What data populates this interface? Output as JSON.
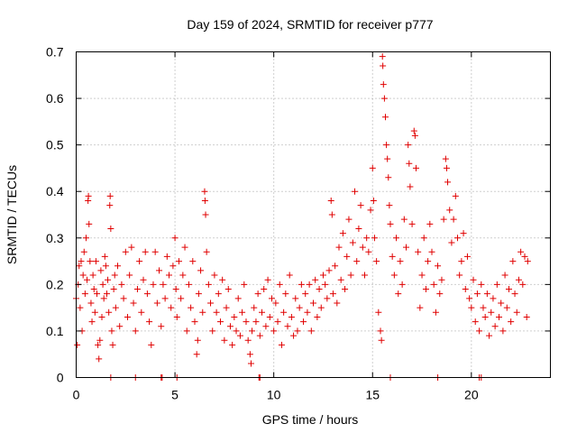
{
  "chart_data": {
    "type": "scatter",
    "title": "Day 159 of 2024, SRMTID for receiver p777",
    "xlabel": "GPS time / hours",
    "ylabel": "SRMTID / TECUs",
    "xlim": [
      0,
      24
    ],
    "ylim": [
      0,
      0.7
    ],
    "x_ticks": [
      0,
      5,
      10,
      15,
      20
    ],
    "x_tick_labels": [
      "0",
      "5",
      "10",
      "15",
      "20"
    ],
    "y_ticks": [
      0,
      0.1,
      0.2,
      0.3,
      0.4,
      0.5,
      0.6,
      0.7
    ],
    "y_tick_labels": [
      "0",
      "0.1",
      "0.2",
      "0.3",
      "0.4",
      "0.5",
      "0.6",
      "0.7"
    ],
    "grid": true,
    "marker": "+",
    "series_color": "#e00000",
    "series": [
      {
        "name": "SRMTID",
        "points": [
          [
            0.0,
            0.17
          ],
          [
            0.05,
            0.07
          ],
          [
            0.1,
            0.2
          ],
          [
            0.15,
            0.24
          ],
          [
            0.2,
            0.15
          ],
          [
            0.25,
            0.25
          ],
          [
            0.3,
            0.1
          ],
          [
            0.35,
            0.22
          ],
          [
            0.4,
            0.27
          ],
          [
            0.45,
            0.18
          ],
          [
            0.5,
            0.3
          ],
          [
            0.55,
            0.21
          ],
          [
            0.6,
            0.38
          ],
          [
            0.62,
            0.39
          ],
          [
            0.65,
            0.33
          ],
          [
            0.7,
            0.25
          ],
          [
            0.75,
            0.16
          ],
          [
            0.8,
            0.12
          ],
          [
            0.85,
            0.22
          ],
          [
            0.9,
            0.19
          ],
          [
            0.95,
            0.14
          ],
          [
            1.0,
            0.25
          ],
          [
            1.05,
            0.18
          ],
          [
            1.1,
            0.07
          ],
          [
            1.15,
            0.04
          ],
          [
            1.2,
            0.08
          ],
          [
            1.25,
            0.23
          ],
          [
            1.3,
            0.13
          ],
          [
            1.35,
            0.2
          ],
          [
            1.4,
            0.17
          ],
          [
            1.45,
            0.26
          ],
          [
            1.5,
            0.24
          ],
          [
            1.55,
            0.18
          ],
          [
            1.6,
            0.21
          ],
          [
            1.65,
            0.14
          ],
          [
            1.7,
            0.37
          ],
          [
            1.72,
            0.39
          ],
          [
            1.75,
            0.32
          ],
          [
            1.8,
            0.1
          ],
          [
            1.85,
            0.07
          ],
          [
            1.9,
            0.19
          ],
          [
            1.95,
            0.22
          ],
          [
            2.0,
            0.15
          ],
          [
            2.1,
            0.24
          ],
          [
            2.2,
            0.11
          ],
          [
            2.3,
            0.2
          ],
          [
            2.4,
            0.17
          ],
          [
            2.5,
            0.27
          ],
          [
            2.6,
            0.13
          ],
          [
            2.7,
            0.22
          ],
          [
            2.8,
            0.28
          ],
          [
            2.9,
            0.16
          ],
          [
            3.0,
            0.1
          ],
          [
            3.1,
            0.19
          ],
          [
            3.2,
            0.25
          ],
          [
            3.3,
            0.14
          ],
          [
            3.4,
            0.21
          ],
          [
            3.5,
            0.27
          ],
          [
            3.6,
            0.18
          ],
          [
            3.7,
            0.12
          ],
          [
            3.8,
            0.07
          ],
          [
            3.9,
            0.2
          ],
          [
            4.0,
            0.27
          ],
          [
            4.1,
            0.16
          ],
          [
            4.2,
            0.23
          ],
          [
            4.3,
            0.11
          ],
          [
            4.4,
            0.2
          ],
          [
            4.5,
            0.17
          ],
          [
            4.6,
            0.26
          ],
          [
            4.7,
            0.22
          ],
          [
            4.8,
            0.15
          ],
          [
            4.9,
            0.24
          ],
          [
            5.0,
            0.3
          ],
          [
            5.05,
            0.19
          ],
          [
            5.1,
            0.13
          ],
          [
            5.2,
            0.25
          ],
          [
            5.3,
            0.17
          ],
          [
            5.4,
            0.22
          ],
          [
            5.5,
            0.28
          ],
          [
            5.6,
            0.1
          ],
          [
            5.7,
            0.2
          ],
          [
            5.8,
            0.15
          ],
          [
            5.9,
            0.25
          ],
          [
            6.0,
            0.12
          ],
          [
            6.1,
            0.05
          ],
          [
            6.15,
            0.08
          ],
          [
            6.2,
            0.18
          ],
          [
            6.3,
            0.23
          ],
          [
            6.4,
            0.14
          ],
          [
            6.5,
            0.4
          ],
          [
            6.52,
            0.38
          ],
          [
            6.55,
            0.35
          ],
          [
            6.6,
            0.27
          ],
          [
            6.7,
            0.2
          ],
          [
            6.8,
            0.16
          ],
          [
            6.9,
            0.1
          ],
          [
            7.0,
            0.22
          ],
          [
            7.1,
            0.14
          ],
          [
            7.2,
            0.18
          ],
          [
            7.3,
            0.12
          ],
          [
            7.4,
            0.21
          ],
          [
            7.5,
            0.08
          ],
          [
            7.6,
            0.15
          ],
          [
            7.7,
            0.19
          ],
          [
            7.8,
            0.11
          ],
          [
            7.9,
            0.07
          ],
          [
            8.0,
            0.13
          ],
          [
            8.1,
            0.1
          ],
          [
            8.2,
            0.17
          ],
          [
            8.3,
            0.09
          ],
          [
            8.4,
            0.14
          ],
          [
            8.5,
            0.2
          ],
          [
            8.6,
            0.12
          ],
          [
            8.7,
            0.08
          ],
          [
            8.8,
            0.05
          ],
          [
            8.85,
            0.03
          ],
          [
            8.9,
            0.1
          ],
          [
            9.0,
            0.15
          ],
          [
            9.1,
            0.12
          ],
          [
            9.2,
            0.18
          ],
          [
            9.3,
            0.09
          ],
          [
            9.4,
            0.14
          ],
          [
            9.5,
            0.19
          ],
          [
            9.6,
            0.11
          ],
          [
            9.7,
            0.21
          ],
          [
            9.8,
            0.13
          ],
          [
            9.9,
            0.17
          ],
          [
            10.0,
            0.1
          ],
          [
            10.1,
            0.16
          ],
          [
            10.2,
            0.12
          ],
          [
            10.3,
            0.2
          ],
          [
            10.4,
            0.07
          ],
          [
            10.5,
            0.14
          ],
          [
            10.6,
            0.18
          ],
          [
            10.7,
            0.11
          ],
          [
            10.8,
            0.22
          ],
          [
            10.9,
            0.13
          ],
          [
            11.0,
            0.09
          ],
          [
            11.1,
            0.17
          ],
          [
            11.2,
            0.1
          ],
          [
            11.3,
            0.15
          ],
          [
            11.4,
            0.2
          ],
          [
            11.5,
            0.12
          ],
          [
            11.6,
            0.18
          ],
          [
            11.7,
            0.14
          ],
          [
            11.8,
            0.2
          ],
          [
            11.9,
            0.1
          ],
          [
            12.0,
            0.16
          ],
          [
            12.1,
            0.21
          ],
          [
            12.2,
            0.13
          ],
          [
            12.3,
            0.19
          ],
          [
            12.4,
            0.15
          ],
          [
            12.5,
            0.22
          ],
          [
            12.6,
            0.2
          ],
          [
            12.7,
            0.17
          ],
          [
            12.8,
            0.23
          ],
          [
            12.9,
            0.38
          ],
          [
            12.95,
            0.35
          ],
          [
            13.0,
            0.18
          ],
          [
            13.1,
            0.24
          ],
          [
            13.2,
            0.16
          ],
          [
            13.3,
            0.28
          ],
          [
            13.4,
            0.21
          ],
          [
            13.5,
            0.31
          ],
          [
            13.6,
            0.19
          ],
          [
            13.7,
            0.26
          ],
          [
            13.8,
            0.34
          ],
          [
            13.9,
            0.22
          ],
          [
            14.0,
            0.29
          ],
          [
            14.1,
            0.4
          ],
          [
            14.2,
            0.25
          ],
          [
            14.3,
            0.32
          ],
          [
            14.4,
            0.37
          ],
          [
            14.5,
            0.28
          ],
          [
            14.6,
            0.22
          ],
          [
            14.7,
            0.3
          ],
          [
            14.8,
            0.27
          ],
          [
            14.9,
            0.36
          ],
          [
            15.0,
            0.45
          ],
          [
            15.05,
            0.38
          ],
          [
            15.1,
            0.3
          ],
          [
            15.2,
            0.25
          ],
          [
            15.3,
            0.14
          ],
          [
            15.4,
            0.1
          ],
          [
            15.45,
            0.08
          ],
          [
            15.5,
            0.69
          ],
          [
            15.52,
            0.67
          ],
          [
            15.55,
            0.63
          ],
          [
            15.6,
            0.6
          ],
          [
            15.65,
            0.56
          ],
          [
            15.7,
            0.5
          ],
          [
            15.75,
            0.47
          ],
          [
            15.8,
            0.43
          ],
          [
            15.85,
            0.37
          ],
          [
            15.9,
            0.33
          ],
          [
            16.0,
            0.26
          ],
          [
            16.1,
            0.22
          ],
          [
            16.2,
            0.3
          ],
          [
            16.3,
            0.18
          ],
          [
            16.4,
            0.25
          ],
          [
            16.5,
            0.2
          ],
          [
            16.6,
            0.34
          ],
          [
            16.7,
            0.28
          ],
          [
            16.8,
            0.5
          ],
          [
            16.85,
            0.46
          ],
          [
            16.9,
            0.41
          ],
          [
            17.0,
            0.33
          ],
          [
            17.1,
            0.53
          ],
          [
            17.15,
            0.52
          ],
          [
            17.2,
            0.45
          ],
          [
            17.3,
            0.27
          ],
          [
            17.4,
            0.15
          ],
          [
            17.5,
            0.22
          ],
          [
            17.6,
            0.3
          ],
          [
            17.7,
            0.19
          ],
          [
            17.8,
            0.25
          ],
          [
            17.9,
            0.33
          ],
          [
            18.0,
            0.27
          ],
          [
            18.1,
            0.2
          ],
          [
            18.2,
            0.14
          ],
          [
            18.3,
            0.24
          ],
          [
            18.4,
            0.18
          ],
          [
            18.5,
            0.21
          ],
          [
            18.6,
            0.34
          ],
          [
            18.7,
            0.47
          ],
          [
            18.75,
            0.45
          ],
          [
            18.8,
            0.42
          ],
          [
            18.9,
            0.36
          ],
          [
            19.0,
            0.29
          ],
          [
            19.1,
            0.34
          ],
          [
            19.2,
            0.39
          ],
          [
            19.3,
            0.3
          ],
          [
            19.4,
            0.22
          ],
          [
            19.5,
            0.25
          ],
          [
            19.6,
            0.31
          ],
          [
            19.7,
            0.19
          ],
          [
            19.8,
            0.26
          ],
          [
            19.9,
            0.17
          ],
          [
            20.0,
            0.15
          ],
          [
            20.1,
            0.21
          ],
          [
            20.2,
            0.12
          ],
          [
            20.3,
            0.18
          ],
          [
            20.4,
            0.1
          ],
          [
            20.5,
            0.2
          ],
          [
            20.6,
            0.15
          ],
          [
            20.7,
            0.13
          ],
          [
            20.8,
            0.18
          ],
          [
            20.9,
            0.09
          ],
          [
            21.0,
            0.14
          ],
          [
            21.1,
            0.17
          ],
          [
            21.2,
            0.11
          ],
          [
            21.3,
            0.2
          ],
          [
            21.4,
            0.13
          ],
          [
            21.5,
            0.16
          ],
          [
            21.6,
            0.1
          ],
          [
            21.7,
            0.22
          ],
          [
            21.8,
            0.15
          ],
          [
            21.9,
            0.19
          ],
          [
            22.0,
            0.12
          ],
          [
            22.1,
            0.25
          ],
          [
            22.2,
            0.18
          ],
          [
            22.3,
            0.14
          ],
          [
            22.4,
            0.21
          ],
          [
            22.5,
            0.27
          ],
          [
            22.6,
            0.2
          ],
          [
            22.7,
            0.26
          ],
          [
            22.8,
            0.13
          ],
          [
            22.85,
            0.25
          ]
        ]
      }
    ],
    "zero_points_x": [
      1.75,
      3.0,
      4.3,
      4.35,
      5.1,
      9.25,
      9.3,
      15.9,
      18.3,
      20.4,
      20.5
    ]
  }
}
